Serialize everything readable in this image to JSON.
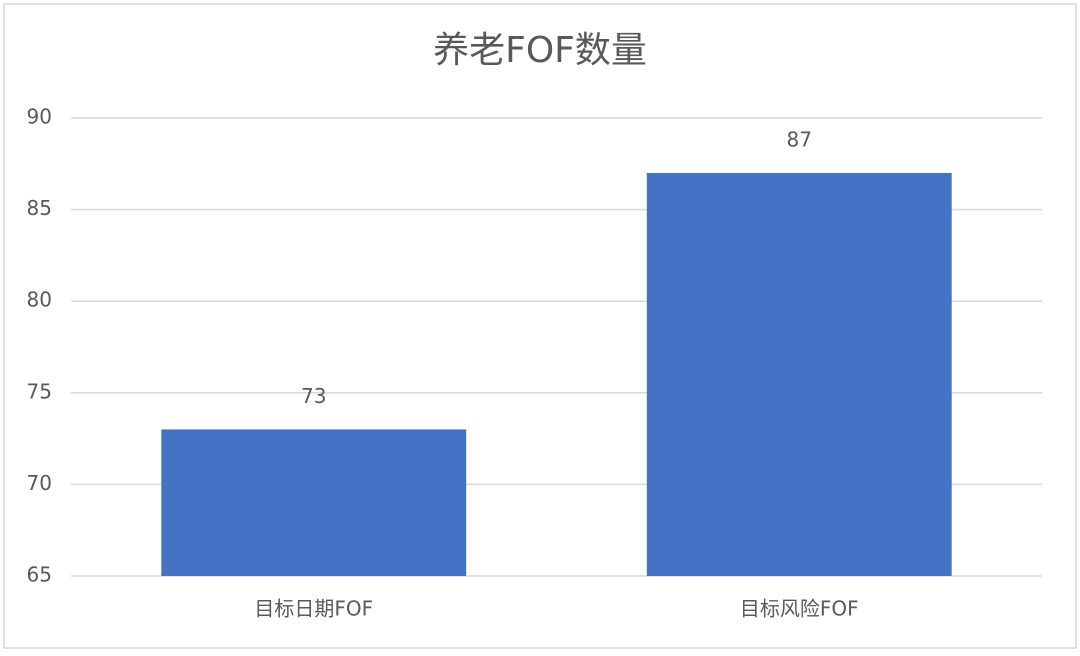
{
  "chart_data": {
    "type": "bar",
    "title": "养老FOF数量",
    "categories": [
      "目标日期FOF",
      "目标风险FOF"
    ],
    "values": [
      73,
      87
    ],
    "color": "#4472c4",
    "ylim": [
      65,
      90
    ],
    "yticks": [
      65,
      70,
      75,
      80,
      85,
      90
    ],
    "grid": true
  }
}
